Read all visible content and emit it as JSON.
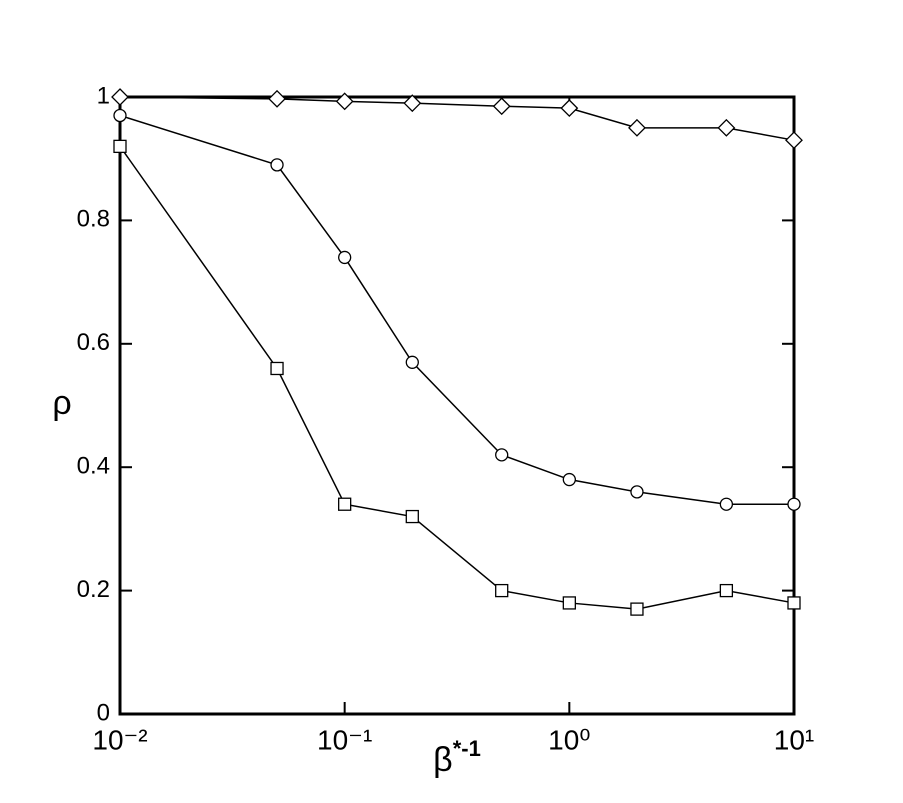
{
  "chart_data": {
    "type": "line",
    "xlabel": {
      "base": "β",
      "sup": "*-1"
    },
    "ylabel": "ρ",
    "xscale": "log",
    "x": [
      0.01,
      0.05,
      0.1,
      0.2,
      0.5,
      1,
      2,
      5,
      10
    ],
    "series": [
      {
        "marker": "diamond",
        "color": "#000000",
        "values": [
          1.0,
          0.997,
          0.993,
          0.99,
          0.985,
          0.982,
          0.95,
          0.95,
          0.93
        ]
      },
      {
        "marker": "circle",
        "color": "#000000",
        "values": [
          0.97,
          0.89,
          0.74,
          0.57,
          0.42,
          0.38,
          0.36,
          0.34,
          0.34
        ]
      },
      {
        "marker": "square",
        "color": "#000000",
        "values": [
          0.92,
          0.56,
          0.34,
          0.32,
          0.2,
          0.18,
          0.17,
          0.2,
          0.18
        ]
      }
    ],
    "xlim": [
      0.01,
      10
    ],
    "xticks": [
      {
        "value": 0.01,
        "label": "10⁻²"
      },
      {
        "value": 0.1,
        "label": "10⁻¹"
      },
      {
        "value": 1,
        "label": "10⁰"
      },
      {
        "value": 10,
        "label": "10¹"
      }
    ],
    "ylim": [
      0,
      1
    ],
    "yticks": [
      0,
      0.2,
      0.4,
      0.6,
      0.8,
      1
    ]
  }
}
